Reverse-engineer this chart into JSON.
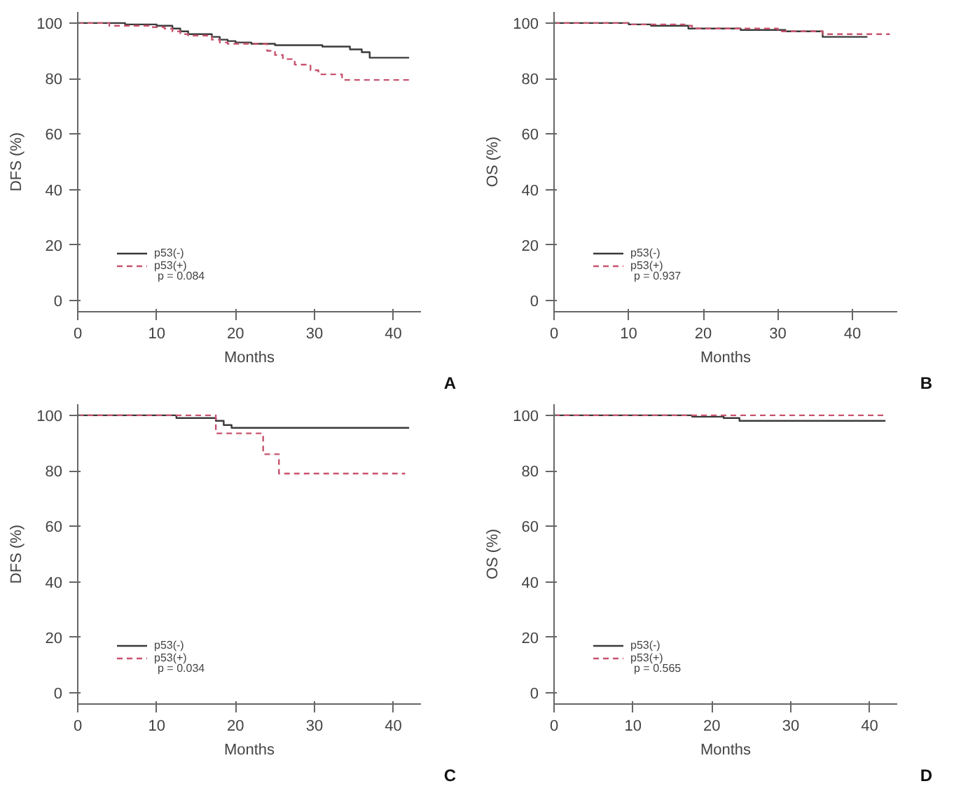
{
  "chart_data": [
    {
      "type": "step",
      "xlabel": "Months",
      "ylabel": "DFS (%)",
      "xlim": [
        0,
        43.5
      ],
      "ylim": [
        -4,
        104
      ],
      "xticks": [
        0,
        10,
        20,
        30,
        40
      ],
      "yticks": [
        0,
        20,
        40,
        60,
        80,
        100
      ],
      "grid": false,
      "legend": "bottom left",
      "annotations": [
        "p = 0.084",
        "A"
      ],
      "series": [
        {
          "name": "p53(-)",
          "color": "#3a3a3a",
          "line_style": "solid",
          "x": [
            0,
            6,
            10,
            12,
            13,
            14,
            17,
            18,
            19,
            20,
            22,
            25,
            31,
            34.5,
            36,
            37,
            42
          ],
          "values": [
            100,
            99.5,
            99,
            98,
            97,
            96,
            95,
            94,
            93.5,
            93,
            92.5,
            92,
            91.5,
            90.5,
            89.5,
            87.5,
            87.5
          ]
        },
        {
          "name": "p53(+)",
          "color": "#c8536f",
          "line_style": "dashed",
          "x": [
            0,
            4,
            9,
            11,
            12,
            13,
            14,
            17,
            18,
            19,
            24,
            25,
            26,
            27.5,
            29.5,
            30.5,
            33.5,
            42
          ],
          "values": [
            100,
            99,
            98.5,
            98,
            97,
            96,
            95.5,
            94,
            93,
            92.5,
            90,
            88.5,
            87,
            85,
            83,
            81.5,
            79.5,
            79.5
          ]
        }
      ]
    },
    {
      "type": "step",
      "xlabel": "Months",
      "ylabel": "OS (%)",
      "xlim": [
        0,
        46
      ],
      "ylim": [
        -4,
        104
      ],
      "xticks": [
        0,
        10,
        20,
        30,
        40
      ],
      "yticks": [
        0,
        20,
        40,
        60,
        80,
        100
      ],
      "grid": false,
      "legend": "bottom left",
      "annotations": [
        "p = 0.937",
        "B"
      ],
      "series": [
        {
          "name": "p53(-)",
          "color": "#3a3a3a",
          "line_style": "solid",
          "x": [
            0,
            10,
            13,
            18,
            25,
            31,
            36,
            42
          ],
          "values": [
            100,
            99.5,
            99,
            98,
            97.5,
            97,
            95,
            95
          ]
        },
        {
          "name": "p53(+)",
          "color": "#c8536f",
          "line_style": "dashed",
          "x": [
            0,
            10,
            17.5,
            18.5,
            30,
            36,
            45
          ],
          "values": [
            100,
            99.5,
            99,
            98,
            97,
            96,
            96
          ]
        }
      ]
    },
    {
      "type": "step",
      "xlabel": "Months",
      "ylabel": "DFS (%)",
      "xlim": [
        0,
        43.5
      ],
      "ylim": [
        -4,
        104
      ],
      "xticks": [
        0,
        10,
        20,
        30,
        40
      ],
      "yticks": [
        0,
        20,
        40,
        60,
        80,
        100
      ],
      "grid": false,
      "legend": "bottom left",
      "annotations": [
        "p = 0.034",
        "C"
      ],
      "series": [
        {
          "name": "p53(-)",
          "color": "#3a3a3a",
          "line_style": "solid",
          "x": [
            0,
            12.5,
            17.5,
            18.5,
            19.5,
            42
          ],
          "values": [
            100,
            99,
            98,
            96.5,
            95.5,
            95.5
          ]
        },
        {
          "name": "p53(+)",
          "color": "#c8536f",
          "line_style": "dashed",
          "x": [
            0,
            17.5,
            23.5,
            25.5,
            41.5
          ],
          "values": [
            100,
            93.5,
            86,
            79,
            79
          ]
        }
      ]
    },
    {
      "type": "step",
      "xlabel": "Months",
      "ylabel": "OS (%)",
      "xlim": [
        0,
        43.5
      ],
      "ylim": [
        -4,
        104
      ],
      "xticks": [
        0,
        10,
        20,
        30,
        40
      ],
      "yticks": [
        0,
        20,
        40,
        60,
        80,
        100
      ],
      "grid": false,
      "legend": "bottom left",
      "annotations": [
        "p = 0.565",
        "D"
      ],
      "series": [
        {
          "name": "p53(-)",
          "color": "#3a3a3a",
          "line_style": "solid",
          "x": [
            0,
            17.5,
            21.5,
            23.5,
            42
          ],
          "values": [
            100,
            99.5,
            99,
            98,
            98
          ]
        },
        {
          "name": "p53(+)",
          "color": "#c8536f",
          "line_style": "dashed",
          "x": [
            0,
            42
          ],
          "values": [
            100,
            100
          ]
        }
      ]
    }
  ]
}
